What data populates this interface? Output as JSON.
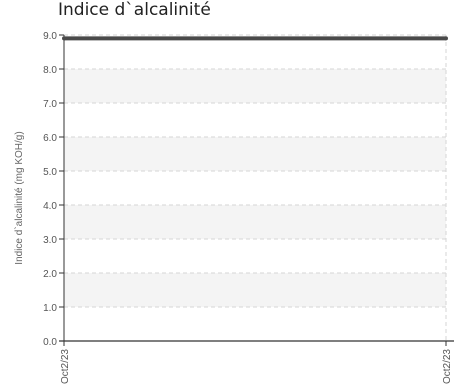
{
  "chart_data": {
    "type": "line",
    "title": "Indice d`alcalinité",
    "ylabel": "Indice d`alcalinité (mg KOH/g)",
    "xlabel": "",
    "x": [
      "Oct2/23",
      "Oct2/23"
    ],
    "series": [
      {
        "values": [
          8.9,
          8.9
        ]
      }
    ],
    "ylim": [
      0,
      9
    ],
    "yticks": [
      "0.0",
      "1.0",
      "2.0",
      "3.0",
      "4.0",
      "5.0",
      "6.0",
      "7.0",
      "8.0",
      "9.0"
    ],
    "grid": true,
    "legend": "none",
    "colors": {
      "line": "#4a4a4a",
      "band": "#f4f4f4",
      "grid": "#d6d6d6",
      "axis": "#333333"
    }
  }
}
